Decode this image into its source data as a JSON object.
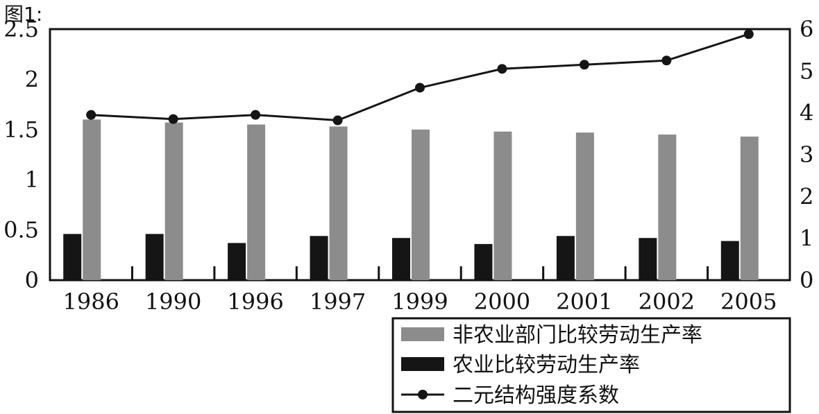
{
  "figure_label": "图1:",
  "chart_data": {
    "type": "bar",
    "categories": [
      "1986",
      "1990",
      "1996",
      "1997",
      "1999",
      "2000",
      "2001",
      "2002",
      "2005"
    ],
    "series": [
      {
        "name": "非农业部门比较劳动生产率",
        "kind": "bar",
        "axis": "left",
        "color": "#8c8c8c",
        "values": [
          1.6,
          1.57,
          1.55,
          1.53,
          1.5,
          1.48,
          1.47,
          1.45,
          1.43
        ]
      },
      {
        "name": "农业比较劳动生产率",
        "kind": "bar",
        "axis": "left",
        "color": "#151515",
        "values": [
          0.46,
          0.46,
          0.37,
          0.44,
          0.42,
          0.36,
          0.44,
          0.42,
          0.39
        ]
      },
      {
        "name": "二元结构强度系数",
        "kind": "line",
        "axis": "right",
        "color": "#151515",
        "values": [
          3.95,
          3.85,
          3.95,
          3.82,
          4.6,
          5.05,
          5.15,
          5.25,
          5.88
        ]
      }
    ],
    "y_left": {
      "lim": [
        0,
        2.5
      ],
      "ticks": [
        "0",
        "0.5",
        "1",
        "1.5",
        "2",
        "2.5"
      ]
    },
    "y_right": {
      "lim": [
        0,
        6
      ],
      "ticks": [
        "0",
        "1",
        "2",
        "3",
        "4",
        "5",
        "6"
      ]
    },
    "grid": false,
    "legend_position": "bottom-right"
  }
}
